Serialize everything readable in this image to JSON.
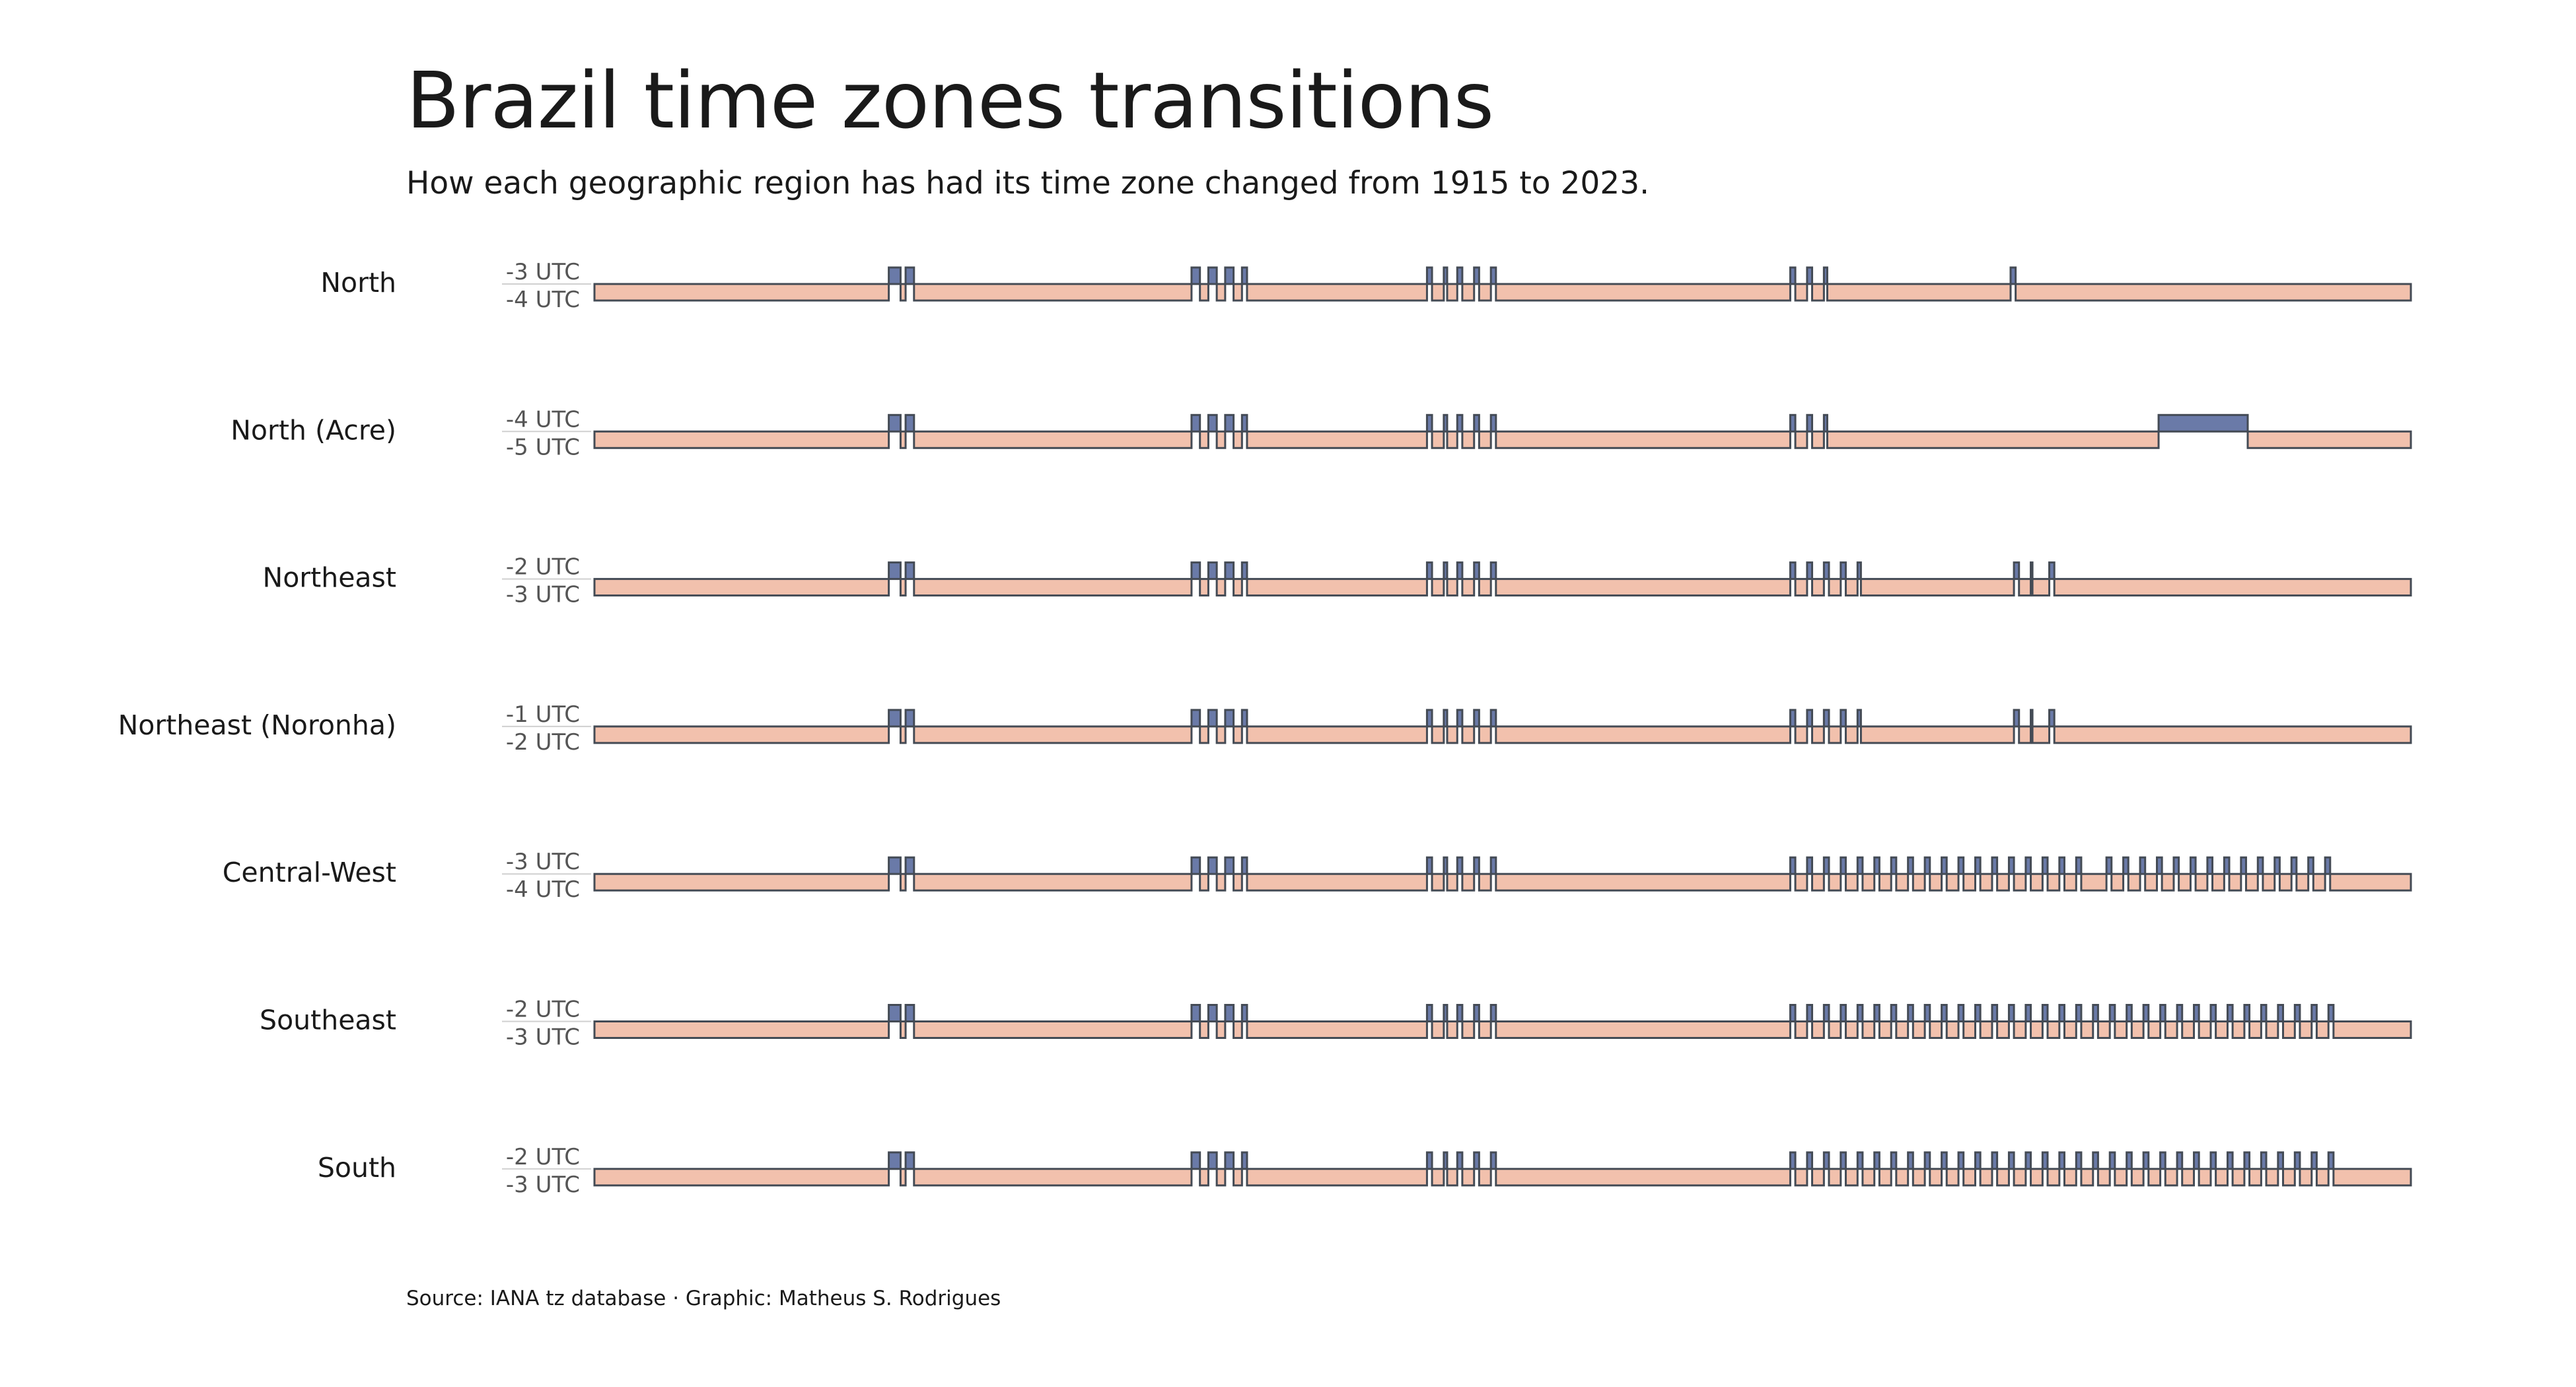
{
  "title": "Brazil time zones transitions",
  "subtitle": "How each geographic region has had its time zone changed from 1915 to 2023.",
  "source": "Source: IANA tz database · Graphic: Matheus S. Rodrigues",
  "colors": {
    "standard": "#f2c1ad",
    "summer": "#6a7aa8",
    "outline": "#444b55"
  },
  "chart_data": {
    "type": "step-timeline",
    "x_range": [
      1915,
      2023
    ],
    "regions": [
      {
        "name": "North",
        "high_label": "-3 UTC",
        "low_label": "-4 UTC",
        "high_periods": [
          [
            1932.5,
            1933.2
          ],
          [
            1933.5,
            1934.0
          ],
          [
            1950.5,
            1951.0
          ],
          [
            1951.5,
            1952.0
          ],
          [
            1952.5,
            1953.0
          ],
          [
            1953.5,
            1953.8
          ],
          [
            1964.5,
            1964.8
          ],
          [
            1965.5,
            1965.7
          ],
          [
            1966.3,
            1966.6
          ],
          [
            1967.3,
            1967.6
          ],
          [
            1968.3,
            1968.6
          ],
          [
            1986.1,
            1986.4
          ],
          [
            1987.1,
            1987.4
          ],
          [
            1988.1,
            1988.3
          ],
          [
            1999.2,
            1999.5
          ]
        ]
      },
      {
        "name": "North (Acre)",
        "high_label": "-4 UTC",
        "low_label": "-5 UTC",
        "high_periods": [
          [
            1932.5,
            1933.2
          ],
          [
            1933.5,
            1934.0
          ],
          [
            1950.5,
            1951.0
          ],
          [
            1951.5,
            1952.0
          ],
          [
            1952.5,
            1953.0
          ],
          [
            1953.5,
            1953.8
          ],
          [
            1964.5,
            1964.8
          ],
          [
            1965.5,
            1965.7
          ],
          [
            1966.3,
            1966.6
          ],
          [
            1967.3,
            1967.6
          ],
          [
            1968.3,
            1968.6
          ],
          [
            1986.1,
            1986.4
          ],
          [
            1987.1,
            1987.4
          ],
          [
            1988.1,
            1988.3
          ],
          [
            2008.0,
            2013.3
          ]
        ]
      },
      {
        "name": "Northeast",
        "high_label": "-2 UTC",
        "low_label": "-3 UTC",
        "high_periods": [
          [
            1932.5,
            1933.2
          ],
          [
            1933.5,
            1934.0
          ],
          [
            1950.5,
            1951.0
          ],
          [
            1951.5,
            1952.0
          ],
          [
            1952.5,
            1953.0
          ],
          [
            1953.5,
            1953.8
          ],
          [
            1964.5,
            1964.8
          ],
          [
            1965.5,
            1965.7
          ],
          [
            1966.3,
            1966.6
          ],
          [
            1967.3,
            1967.6
          ],
          [
            1968.3,
            1968.6
          ],
          [
            1986.1,
            1986.4
          ],
          [
            1987.1,
            1987.4
          ],
          [
            1988.1,
            1988.4
          ],
          [
            1989.1,
            1989.4
          ],
          [
            1990.1,
            1990.3
          ],
          [
            1999.4,
            1999.7
          ],
          [
            2000.4,
            2000.5
          ],
          [
            2001.5,
            2001.8
          ]
        ]
      },
      {
        "name": "Northeast (Noronha)",
        "high_label": "-1 UTC",
        "low_label": "-2 UTC",
        "high_periods": [
          [
            1932.5,
            1933.2
          ],
          [
            1933.5,
            1934.0
          ],
          [
            1950.5,
            1951.0
          ],
          [
            1951.5,
            1952.0
          ],
          [
            1952.5,
            1953.0
          ],
          [
            1953.5,
            1953.8
          ],
          [
            1964.5,
            1964.8
          ],
          [
            1965.5,
            1965.7
          ],
          [
            1966.3,
            1966.6
          ],
          [
            1967.3,
            1967.6
          ],
          [
            1968.3,
            1968.6
          ],
          [
            1986.1,
            1986.4
          ],
          [
            1987.1,
            1987.4
          ],
          [
            1988.1,
            1988.4
          ],
          [
            1989.1,
            1989.4
          ],
          [
            1990.1,
            1990.3
          ],
          [
            1999.4,
            1999.7
          ],
          [
            2000.4,
            2000.5
          ],
          [
            2001.5,
            2001.8
          ]
        ]
      },
      {
        "name": "Central-West",
        "high_label": "-3 UTC",
        "low_label": "-4 UTC",
        "high_periods": [
          [
            1932.5,
            1933.2
          ],
          [
            1933.5,
            1934.0
          ],
          [
            1950.5,
            1951.0
          ],
          [
            1951.5,
            1952.0
          ],
          [
            1952.5,
            1953.0
          ],
          [
            1953.5,
            1953.8
          ],
          [
            1964.5,
            1964.8
          ],
          [
            1965.5,
            1965.7
          ],
          [
            1966.3,
            1966.6
          ],
          [
            1967.3,
            1967.6
          ],
          [
            1968.3,
            1968.6
          ],
          [
            1986.1,
            1986.4
          ],
          [
            1987.1,
            1987.4
          ],
          [
            1988.1,
            1988.4
          ],
          [
            1989.1,
            1989.4
          ],
          [
            1990.1,
            1990.4
          ],
          [
            1991.1,
            1991.4
          ],
          [
            1992.1,
            1992.4
          ],
          [
            1993.1,
            1993.4
          ],
          [
            1994.1,
            1994.4
          ],
          [
            1995.1,
            1995.4
          ],
          [
            1996.1,
            1996.4
          ],
          [
            1997.1,
            1997.4
          ],
          [
            1998.1,
            1998.4
          ],
          [
            1999.1,
            1999.4
          ],
          [
            2000.1,
            2000.4
          ],
          [
            2001.1,
            2001.4
          ],
          [
            2002.1,
            2002.4
          ],
          [
            2003.1,
            2003.4
          ],
          [
            2004.9,
            2005.2
          ],
          [
            2005.9,
            2006.2
          ],
          [
            2006.9,
            2007.2
          ],
          [
            2007.9,
            2008.2
          ],
          [
            2008.9,
            2009.2
          ],
          [
            2009.9,
            2010.2
          ],
          [
            2010.9,
            2011.2
          ],
          [
            2011.9,
            2012.2
          ],
          [
            2012.9,
            2013.2
          ],
          [
            2013.9,
            2014.2
          ],
          [
            2014.9,
            2015.2
          ],
          [
            2015.9,
            2016.2
          ],
          [
            2016.9,
            2017.2
          ],
          [
            2017.9,
            2018.2
          ]
        ]
      },
      {
        "name": "Southeast",
        "high_label": "-2 UTC",
        "low_label": "-3 UTC",
        "high_periods": [
          [
            1932.5,
            1933.2
          ],
          [
            1933.5,
            1934.0
          ],
          [
            1950.5,
            1951.0
          ],
          [
            1951.5,
            1952.0
          ],
          [
            1952.5,
            1953.0
          ],
          [
            1953.5,
            1953.8
          ],
          [
            1964.5,
            1964.8
          ],
          [
            1965.5,
            1965.7
          ],
          [
            1966.3,
            1966.6
          ],
          [
            1967.3,
            1967.6
          ],
          [
            1968.3,
            1968.6
          ],
          [
            1986.1,
            1986.4
          ],
          [
            1987.1,
            1987.4
          ],
          [
            1988.1,
            1988.4
          ],
          [
            1989.1,
            1989.4
          ],
          [
            1990.1,
            1990.4
          ],
          [
            1991.1,
            1991.4
          ],
          [
            1992.1,
            1992.4
          ],
          [
            1993.1,
            1993.4
          ],
          [
            1994.1,
            1994.4
          ],
          [
            1995.1,
            1995.4
          ],
          [
            1996.1,
            1996.4
          ],
          [
            1997.1,
            1997.4
          ],
          [
            1998.1,
            1998.4
          ],
          [
            1999.1,
            1999.4
          ],
          [
            2000.1,
            2000.4
          ],
          [
            2001.1,
            2001.4
          ],
          [
            2002.1,
            2002.4
          ],
          [
            2003.1,
            2003.4
          ],
          [
            2004.1,
            2004.4
          ],
          [
            2005.1,
            2005.4
          ],
          [
            2006.1,
            2006.4
          ],
          [
            2007.1,
            2007.4
          ],
          [
            2008.1,
            2008.4
          ],
          [
            2009.1,
            2009.4
          ],
          [
            2010.1,
            2010.4
          ],
          [
            2011.1,
            2011.4
          ],
          [
            2012.1,
            2012.4
          ],
          [
            2013.1,
            2013.4
          ],
          [
            2014.1,
            2014.4
          ],
          [
            2015.1,
            2015.4
          ],
          [
            2016.1,
            2016.4
          ],
          [
            2017.1,
            2017.4
          ],
          [
            2018.1,
            2018.4
          ]
        ]
      },
      {
        "name": "South",
        "high_label": "-2 UTC",
        "low_label": "-3 UTC",
        "high_periods": [
          [
            1932.5,
            1933.2
          ],
          [
            1933.5,
            1934.0
          ],
          [
            1950.5,
            1951.0
          ],
          [
            1951.5,
            1952.0
          ],
          [
            1952.5,
            1953.0
          ],
          [
            1953.5,
            1953.8
          ],
          [
            1964.5,
            1964.8
          ],
          [
            1965.5,
            1965.7
          ],
          [
            1966.3,
            1966.6
          ],
          [
            1967.3,
            1967.6
          ],
          [
            1968.3,
            1968.6
          ],
          [
            1986.1,
            1986.4
          ],
          [
            1987.1,
            1987.4
          ],
          [
            1988.1,
            1988.4
          ],
          [
            1989.1,
            1989.4
          ],
          [
            1990.1,
            1990.4
          ],
          [
            1991.1,
            1991.4
          ],
          [
            1992.1,
            1992.4
          ],
          [
            1993.1,
            1993.4
          ],
          [
            1994.1,
            1994.4
          ],
          [
            1995.1,
            1995.4
          ],
          [
            1996.1,
            1996.4
          ],
          [
            1997.1,
            1997.4
          ],
          [
            1998.1,
            1998.4
          ],
          [
            1999.1,
            1999.4
          ],
          [
            2000.1,
            2000.4
          ],
          [
            2001.1,
            2001.4
          ],
          [
            2002.1,
            2002.4
          ],
          [
            2003.1,
            2003.4
          ],
          [
            2004.1,
            2004.4
          ],
          [
            2005.1,
            2005.4
          ],
          [
            2006.1,
            2006.4
          ],
          [
            2007.1,
            2007.4
          ],
          [
            2008.1,
            2008.4
          ],
          [
            2009.1,
            2009.4
          ],
          [
            2010.1,
            2010.4
          ],
          [
            2011.1,
            2011.4
          ],
          [
            2012.1,
            2012.4
          ],
          [
            2013.1,
            2013.4
          ],
          [
            2014.1,
            2014.4
          ],
          [
            2015.1,
            2015.4
          ],
          [
            2016.1,
            2016.4
          ],
          [
            2017.1,
            2017.4
          ],
          [
            2018.1,
            2018.4
          ]
        ]
      }
    ]
  }
}
